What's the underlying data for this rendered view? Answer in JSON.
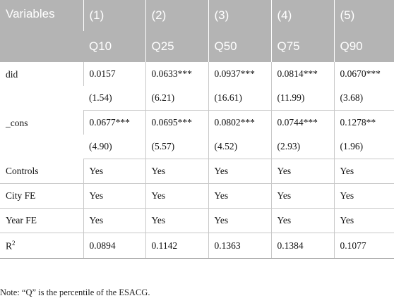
{
  "table": {
    "header": {
      "variables_label": "Variables",
      "numbers": [
        "(1)",
        "(2)",
        "(3)",
        "(4)",
        "(5)"
      ],
      "quantiles": [
        "Q10",
        "Q25",
        "Q50",
        "Q75",
        "Q90"
      ]
    },
    "did": {
      "label": "did",
      "coef": [
        "0.0157",
        "0.0633***",
        "0.0937***",
        "0.0814***",
        "0.0670***"
      ],
      "t": [
        "(1.54)",
        "(6.21)",
        "(16.61)",
        "(11.99)",
        "(3.68)"
      ]
    },
    "cons": {
      "label": "_cons",
      "coef": [
        "0.0677***",
        "0.0695***",
        "0.0802***",
        "0.0744***",
        "0.1278**"
      ],
      "t": [
        "(4.90)",
        "(5.57)",
        "(4.52)",
        "(2.93)",
        "(1.96)"
      ]
    },
    "controls": {
      "label": "Controls",
      "values": [
        "Yes",
        "Yes",
        "Yes",
        "Yes",
        "Yes"
      ]
    },
    "city_fe": {
      "label": "City FE",
      "values": [
        "Yes",
        "Yes",
        "Yes",
        "Yes",
        "Yes"
      ]
    },
    "year_fe": {
      "label": "Year FE",
      "values": [
        "Yes",
        "Yes",
        "Yes",
        "Yes",
        "Yes"
      ]
    },
    "r2": {
      "label": "R",
      "label_sup": "2",
      "values": [
        "0.0894",
        "0.1142",
        "0.1363",
        "0.1384",
        "0.1077"
      ]
    }
  },
  "note": "Note: “Q” is the percentile of the ESACG."
}
